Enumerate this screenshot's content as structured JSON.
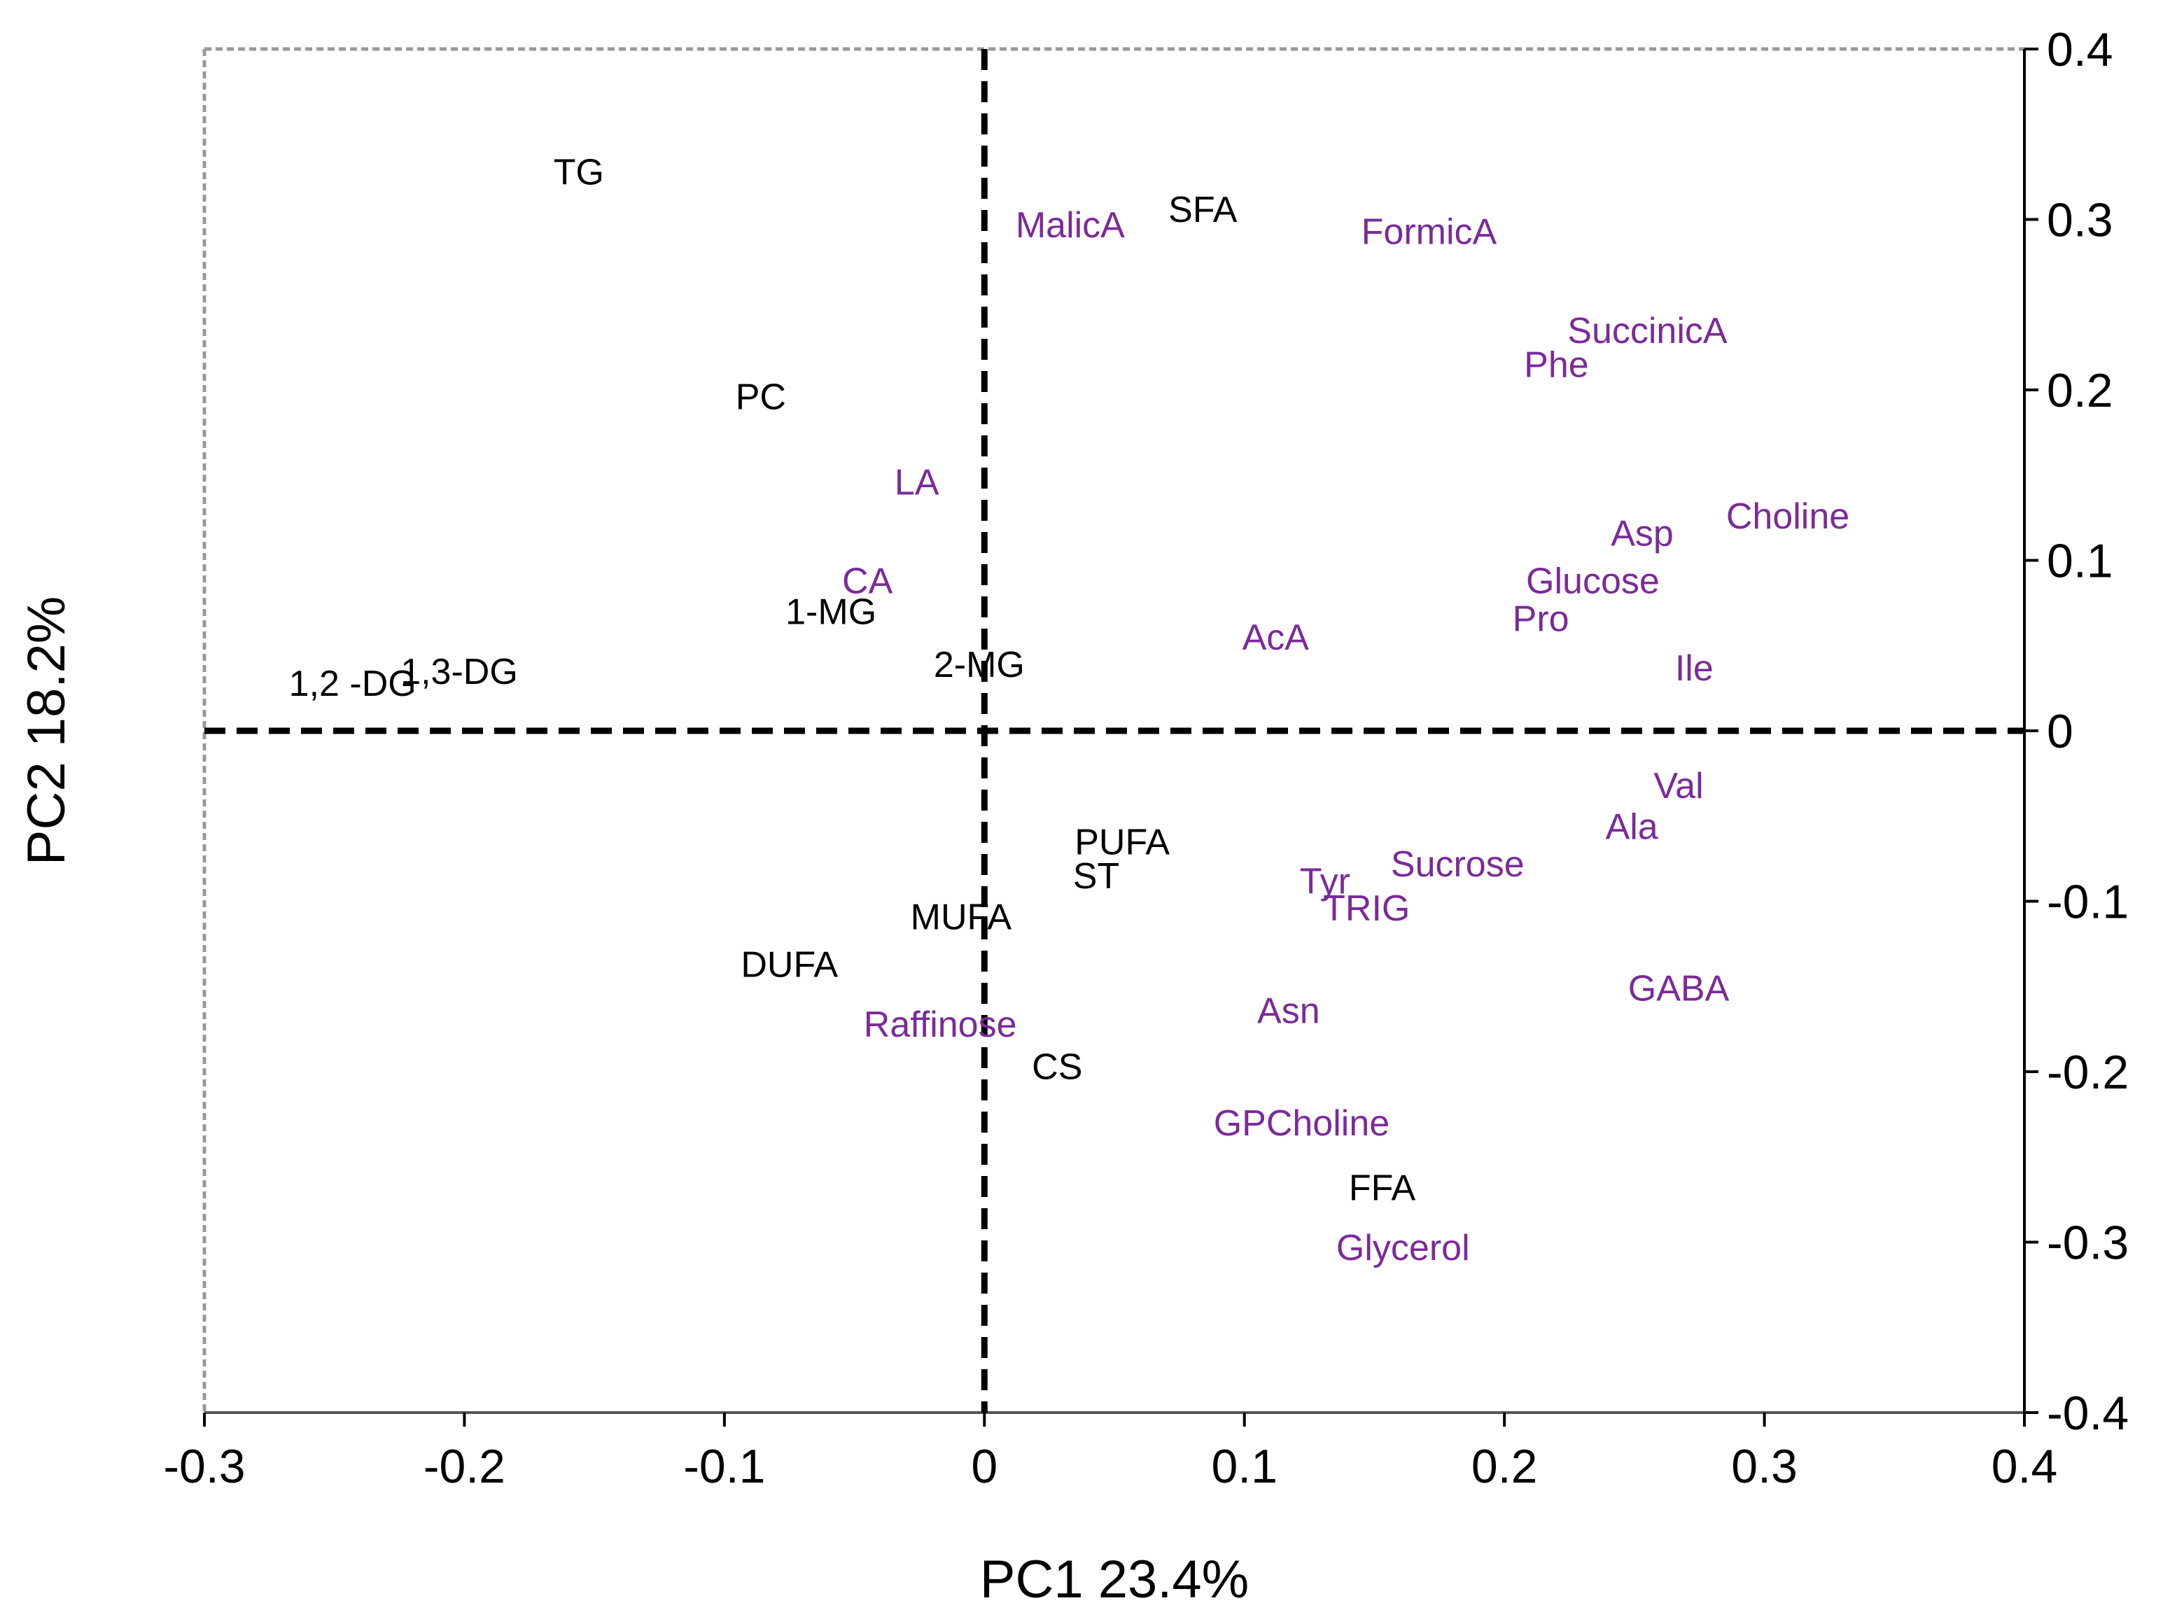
{
  "chart_data": {
    "type": "scatter",
    "title": "",
    "xlabel": "PC1 23.4%",
    "ylabel": "PC2 18.2%",
    "xlim": [
      -0.3,
      0.4
    ],
    "ylim": [
      -0.4,
      0.4
    ],
    "x_ticks": [
      {
        "value": -0.3,
        "label": "-0.3"
      },
      {
        "value": -0.2,
        "label": "-0.2"
      },
      {
        "value": -0.1,
        "label": "-0.1"
      },
      {
        "value": 0,
        "label": "0"
      },
      {
        "value": 0.1,
        "label": "0.1"
      },
      {
        "value": 0.2,
        "label": "0.2"
      },
      {
        "value": 0.3,
        "label": "0.3"
      },
      {
        "value": 0.4,
        "label": "0.4"
      }
    ],
    "y_ticks": [
      {
        "value": 0.4,
        "label": "0.4"
      },
      {
        "value": 0.3,
        "label": "0.3"
      },
      {
        "value": 0.2,
        "label": "0.2"
      },
      {
        "value": 0.1,
        "label": "0.1"
      },
      {
        "value": 0,
        "label": "0"
      },
      {
        "value": -0.1,
        "label": "-0.1"
      },
      {
        "value": -0.2,
        "label": "-0.2"
      },
      {
        "value": -0.3,
        "label": "-0.3"
      },
      {
        "value": -0.4,
        "label": "-0.4"
      }
    ],
    "reference_lines": {
      "x": 0,
      "y": 0,
      "style": "dashed"
    },
    "y_axis_side": "right",
    "colors": {
      "lipid": "#000000",
      "metabolite": "#7B2A9A",
      "frame": "#999999"
    },
    "series": [
      {
        "name": "lipid",
        "color": "#000000",
        "points": [
          {
            "label": "TG",
            "x": -0.156,
            "y": 0.328
          },
          {
            "label": "SFA",
            "x": 0.084,
            "y": 0.306
          },
          {
            "label": "PC",
            "x": -0.086,
            "y": 0.196
          },
          {
            "label": "1-MG",
            "x": -0.059,
            "y": 0.07
          },
          {
            "label": "2-MG",
            "x": -0.002,
            "y": 0.039
          },
          {
            "label": "1,3-DG",
            "x": -0.202,
            "y": 0.035
          },
          {
            "label": "1,2 -DG",
            "x": -0.243,
            "y": 0.028
          },
          {
            "label": "PUFA",
            "x": 0.053,
            "y": -0.065
          },
          {
            "label": "ST",
            "x": 0.043,
            "y": -0.085
          },
          {
            "label": "MUFA",
            "x": -0.009,
            "y": -0.109
          },
          {
            "label": "DUFA",
            "x": -0.075,
            "y": -0.137
          },
          {
            "label": "CS",
            "x": 0.028,
            "y": -0.197
          },
          {
            "label": "FFA",
            "x": 0.153,
            "y": -0.268
          }
        ]
      },
      {
        "name": "metabolite",
        "color": "#7B2A9A",
        "points": [
          {
            "label": "MalicA",
            "x": 0.033,
            "y": 0.297
          },
          {
            "label": "FormicA",
            "x": 0.171,
            "y": 0.293
          },
          {
            "label": "SuccinicA",
            "x": 0.255,
            "y": 0.235
          },
          {
            "label": "Phe",
            "x": 0.22,
            "y": 0.215
          },
          {
            "label": "LA",
            "x": -0.026,
            "y": 0.146
          },
          {
            "label": "Choline",
            "x": 0.309,
            "y": 0.126
          },
          {
            "label": "Asp",
            "x": 0.253,
            "y": 0.116
          },
          {
            "label": "Glucose",
            "x": 0.234,
            "y": 0.088
          },
          {
            "label": "CA",
            "x": -0.045,
            "y": 0.088
          },
          {
            "label": "Pro",
            "x": 0.214,
            "y": 0.066
          },
          {
            "label": "AcA",
            "x": 0.112,
            "y": 0.055
          },
          {
            "label": "Ile",
            "x": 0.273,
            "y": 0.037
          },
          {
            "label": "Val",
            "x": 0.267,
            "y": -0.032
          },
          {
            "label": "Ala",
            "x": 0.249,
            "y": -0.056
          },
          {
            "label": "Sucrose",
            "x": 0.182,
            "y": -0.078
          },
          {
            "label": "Tyr",
            "x": 0.131,
            "y": -0.088
          },
          {
            "label": "TRIG",
            "x": 0.147,
            "y": -0.104
          },
          {
            "label": "GABA",
            "x": 0.267,
            "y": -0.151
          },
          {
            "label": "Asn",
            "x": 0.117,
            "y": -0.164
          },
          {
            "label": "Raffinose",
            "x": -0.017,
            "y": -0.172
          },
          {
            "label": "GPCholine",
            "x": 0.122,
            "y": -0.23
          },
          {
            "label": "Glycerol",
            "x": 0.161,
            "y": -0.303
          }
        ]
      }
    ]
  }
}
